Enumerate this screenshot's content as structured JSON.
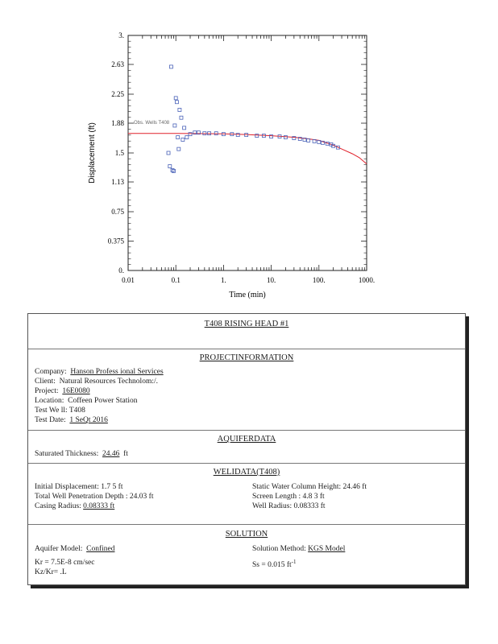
{
  "chart_data": {
    "type": "scatter",
    "xlabel": "Time (min)",
    "ylabel": "Displacement (ft)",
    "xscale": "log",
    "xlim": [
      0.01,
      1000
    ],
    "ylim": [
      0,
      3
    ],
    "xticks": [
      "0.01",
      "0.1",
      "1.",
      "10.",
      "100.",
      "1000."
    ],
    "xtick_values": [
      0.01,
      0.1,
      1,
      10,
      100,
      1000
    ],
    "yticks": [
      "0.",
      "0.375",
      "0.75",
      "1.13",
      "1.5",
      "1.88",
      "2.25",
      "2.63",
      "3."
    ],
    "ytick_values": [
      0,
      0.375,
      0.75,
      1.13,
      1.5,
      1.88,
      2.25,
      2.63,
      3.0
    ],
    "annotation": "Obs. Wells T408",
    "series": [
      {
        "kind": "observed",
        "marker": "square",
        "color": "#4a62b8",
        "x": [
          0.07,
          0.075,
          0.08,
          0.085,
          0.09,
          0.095,
          0.1,
          0.105,
          0.11,
          0.115,
          0.12,
          0.13,
          0.14,
          0.15,
          0.17,
          0.2,
          0.25,
          0.3,
          0.4,
          0.5,
          0.7,
          1,
          1.5,
          2,
          3,
          5,
          7,
          10,
          15,
          20,
          30,
          40,
          50,
          60,
          80,
          100,
          120,
          150,
          180,
          200,
          250
        ],
        "y": [
          1.5,
          1.33,
          2.6,
          1.28,
          1.27,
          1.85,
          2.2,
          2.15,
          1.7,
          1.55,
          2.05,
          1.95,
          1.67,
          1.82,
          1.7,
          1.74,
          1.76,
          1.76,
          1.75,
          1.75,
          1.75,
          1.74,
          1.74,
          1.73,
          1.73,
          1.72,
          1.72,
          1.71,
          1.71,
          1.7,
          1.69,
          1.68,
          1.67,
          1.66,
          1.65,
          1.64,
          1.63,
          1.62,
          1.61,
          1.59,
          1.57
        ]
      },
      {
        "kind": "fitted",
        "color": "#e0202a",
        "x": [
          0.01,
          0.1,
          1,
          3,
          10,
          30,
          60,
          100,
          200,
          300,
          500,
          700,
          1000
        ],
        "y": [
          1.75,
          1.75,
          1.745,
          1.735,
          1.72,
          1.7,
          1.68,
          1.66,
          1.6,
          1.55,
          1.49,
          1.44,
          1.36
        ]
      }
    ]
  },
  "report": {
    "title": "T408 RISING HEAD #1",
    "project_info": {
      "heading": "PROJECTINFORMATION",
      "company_label": "Company:",
      "company": "Hanson Profess ional Services",
      "client_label": "Client:",
      "client": "Natural Resources Technolom:/.",
      "project_label": "Project:",
      "project": "16E0080",
      "location_label": "Location:",
      "location": "Coffeen Power Station",
      "test_well_label": "Test We ll:",
      "test_well": "T408",
      "test_date_label": "Test Date:",
      "test_date": "1 SeQt 2016"
    },
    "aquifer_data": {
      "heading": "AQUIFERDATA",
      "sat_thickness_label": "Saturated Thickness:",
      "sat_thickness": "24.46",
      "sat_thickness_unit": "ft"
    },
    "well_data": {
      "heading": "WELIDATA(T408)",
      "initial_disp": "Initial Displacement: 1.7 5 ft",
      "total_pen": "Total Well Penetration Depth : 24.03 ft",
      "casing_radius_label": "Casing Radius:",
      "casing_radius": "0.08333 ft",
      "static_col": "Static Water Column Height: 24.46 ft",
      "screen_len": "Screen Length : 4.8 3 ft",
      "well_radius_label": "Well Radius:",
      "well_radius": "0.08333 ft"
    },
    "solution": {
      "heading": "SOLUTION",
      "aquifer_model_label": "Aquifer Model:",
      "aquifer_model": "Confined",
      "kr": "Kr = 7.5E-8 cm/sec",
      "kzkr": "Kz/Kr= .L",
      "method_label": "Solution Method:",
      "method": "KGS Model",
      "ss": "Ss = 0.015 ft",
      "ss_exp": "-1"
    }
  }
}
